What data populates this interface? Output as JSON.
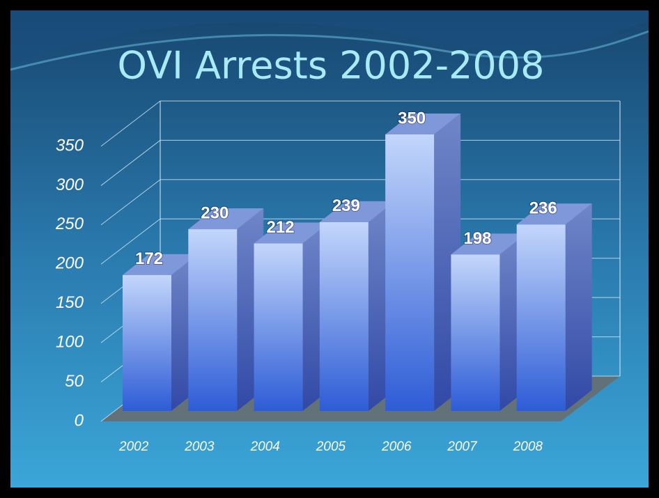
{
  "chart_data": {
    "type": "bar3d",
    "title": "OVI Arrests 2002-2008",
    "categories": [
      "2002",
      "2003",
      "2004",
      "2005",
      "2006",
      "2007",
      "2008"
    ],
    "values": [
      172,
      230,
      212,
      239,
      350,
      198,
      236
    ],
    "color": "#5b82e6",
    "ylim": [
      0,
      350
    ],
    "yticks": [
      0,
      50,
      100,
      150,
      200,
      250,
      300,
      350
    ],
    "grid": true
  }
}
